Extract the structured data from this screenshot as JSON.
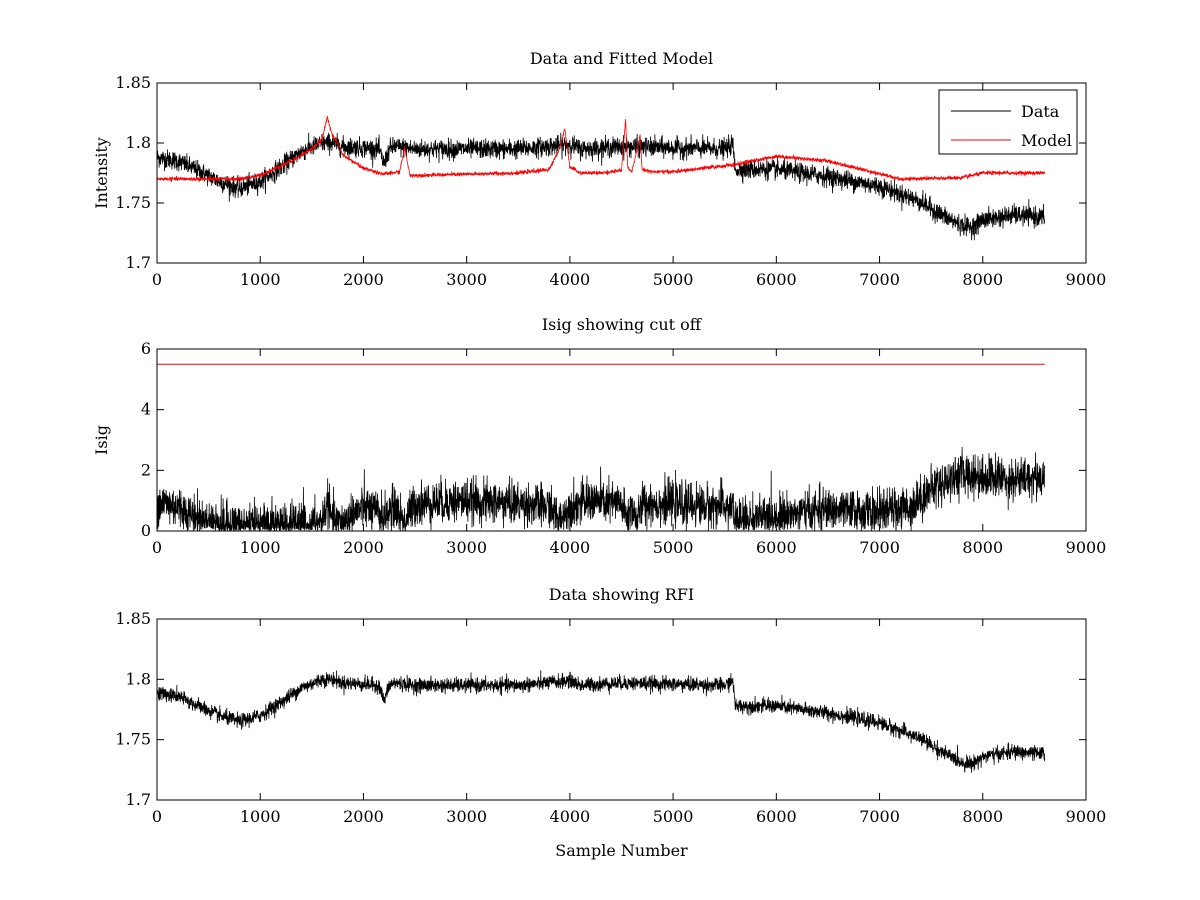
{
  "chart_data": [
    {
      "type": "line",
      "title": "Data and Fitted Model",
      "xlabel": "",
      "ylabel": "Intensity",
      "xlim": [
        0,
        9000
      ],
      "ylim": [
        1.7,
        1.85
      ],
      "xticks": [
        0,
        1000,
        2000,
        3000,
        4000,
        5000,
        6000,
        7000,
        8000,
        9000
      ],
      "yticks": [
        1.7,
        1.75,
        1.8,
        1.85
      ],
      "ytick_labels": [
        "1.7",
        "1.75",
        "1.8",
        "1.85"
      ],
      "legend": {
        "placement": "top-right",
        "entries": [
          "Data",
          "Model"
        ]
      },
      "series": [
        {
          "name": "Data",
          "color": "#000000",
          "noise": 0.004,
          "x": [
            0,
            200,
            400,
            600,
            800,
            1000,
            1200,
            1400,
            1600,
            1700,
            1800,
            2000,
            2150,
            2200,
            2250,
            2300,
            2500,
            3000,
            3500,
            3900,
            4000,
            4100,
            4500,
            5000,
            5500,
            5580,
            5600,
            6000,
            6500,
            7000,
            7400,
            7600,
            7800,
            7900,
            8000,
            8300,
            8600
          ],
          "values": [
            1.788,
            1.785,
            1.777,
            1.768,
            1.762,
            1.768,
            1.78,
            1.793,
            1.8,
            1.8,
            1.797,
            1.796,
            1.795,
            1.782,
            1.795,
            1.797,
            1.795,
            1.795,
            1.795,
            1.798,
            1.799,
            1.795,
            1.797,
            1.796,
            1.795,
            1.799,
            1.778,
            1.778,
            1.772,
            1.764,
            1.751,
            1.74,
            1.731,
            1.73,
            1.736,
            1.74,
            1.738
          ]
        },
        {
          "name": "Model",
          "color": "#ff0000",
          "noise": 0.0008,
          "x": [
            0,
            500,
            800,
            1000,
            1300,
            1500,
            1600,
            1650,
            1700,
            1750,
            1800,
            2000,
            2200,
            2350,
            2400,
            2450,
            2500,
            3000,
            3500,
            3800,
            3900,
            3950,
            4000,
            4100,
            4300,
            4500,
            4540,
            4560,
            4600,
            4680,
            4700,
            4800,
            5000,
            5600,
            6000,
            6500,
            7200,
            7800,
            8000,
            8600
          ],
          "values": [
            1.77,
            1.77,
            1.77,
            1.773,
            1.785,
            1.795,
            1.803,
            1.822,
            1.806,
            1.8,
            1.79,
            1.779,
            1.774,
            1.776,
            1.796,
            1.773,
            1.773,
            1.774,
            1.775,
            1.778,
            1.795,
            1.812,
            1.78,
            1.775,
            1.775,
            1.777,
            1.82,
            1.78,
            1.776,
            1.806,
            1.778,
            1.776,
            1.776,
            1.782,
            1.789,
            1.785,
            1.77,
            1.771,
            1.775,
            1.775
          ]
        }
      ]
    },
    {
      "type": "line",
      "title": "Isig showing cut off",
      "xlabel": "",
      "ylabel": "Isig",
      "xlim": [
        0,
        9000
      ],
      "ylim": [
        0,
        6
      ],
      "xticks": [
        0,
        1000,
        2000,
        3000,
        4000,
        5000,
        6000,
        7000,
        8000,
        9000
      ],
      "yticks": [
        0,
        2,
        4,
        6
      ],
      "ytick_labels": [
        "0",
        "2",
        "4",
        "6"
      ],
      "series": [
        {
          "color": "#000000",
          "noise": 0.35,
          "clamp_min": 0,
          "x": [
            0,
            200,
            400,
            600,
            800,
            1000,
            1200,
            1500,
            1600,
            1650,
            1700,
            1800,
            2000,
            2200,
            2300,
            2400,
            2500,
            3000,
            3500,
            3800,
            3900,
            4000,
            4200,
            4500,
            4550,
            4600,
            4650,
            4700,
            5000,
            5500,
            5580,
            5600,
            6000,
            6500,
            7000,
            7300,
            7500,
            7800,
            8000,
            8300,
            8600
          ],
          "values": [
            1.0,
            0.8,
            0.4,
            0.25,
            0.2,
            0.2,
            0.2,
            0.2,
            0.3,
            1.0,
            0.3,
            0.3,
            0.8,
            0.5,
            0.8,
            0.3,
            0.9,
            1.0,
            0.9,
            0.8,
            0.3,
            0.8,
            1.0,
            0.9,
            0.4,
            0.8,
            0.3,
            0.9,
            0.9,
            0.8,
            0.8,
            0.35,
            0.5,
            0.7,
            0.6,
            0.8,
            1.4,
            1.9,
            1.8,
            1.7,
            1.8
          ]
        },
        {
          "color": "#ff0000",
          "noise": 0,
          "x": [
            0,
            8600
          ],
          "values": [
            5.5,
            5.5
          ]
        }
      ]
    },
    {
      "type": "line",
      "title": "Data showing RFI",
      "xlabel": "Sample Number",
      "ylabel": "",
      "xlim": [
        0,
        9000
      ],
      "ylim": [
        1.7,
        1.85
      ],
      "xticks": [
        0,
        1000,
        2000,
        3000,
        4000,
        5000,
        6000,
        7000,
        8000,
        9000
      ],
      "yticks": [
        1.7,
        1.75,
        1.8,
        1.85
      ],
      "ytick_labels": [
        "1.7",
        "1.75",
        "1.8",
        "1.85"
      ],
      "series": [
        {
          "color": "#000000",
          "noise": 0.003,
          "x": [
            0,
            200,
            400,
            600,
            800,
            1000,
            1200,
            1400,
            1600,
            1700,
            1800,
            2000,
            2150,
            2200,
            2250,
            2300,
            2500,
            3000,
            3500,
            3900,
            4000,
            4100,
            4500,
            5000,
            5500,
            5580,
            5600,
            6000,
            6500,
            7000,
            7400,
            7600,
            7800,
            7900,
            8000,
            8300,
            8600
          ],
          "values": [
            1.789,
            1.786,
            1.778,
            1.77,
            1.765,
            1.77,
            1.781,
            1.793,
            1.8,
            1.8,
            1.797,
            1.796,
            1.795,
            1.782,
            1.795,
            1.797,
            1.795,
            1.795,
            1.795,
            1.798,
            1.799,
            1.795,
            1.797,
            1.796,
            1.795,
            1.799,
            1.778,
            1.778,
            1.772,
            1.764,
            1.751,
            1.74,
            1.731,
            1.73,
            1.736,
            1.74,
            1.738
          ]
        }
      ]
    }
  ]
}
